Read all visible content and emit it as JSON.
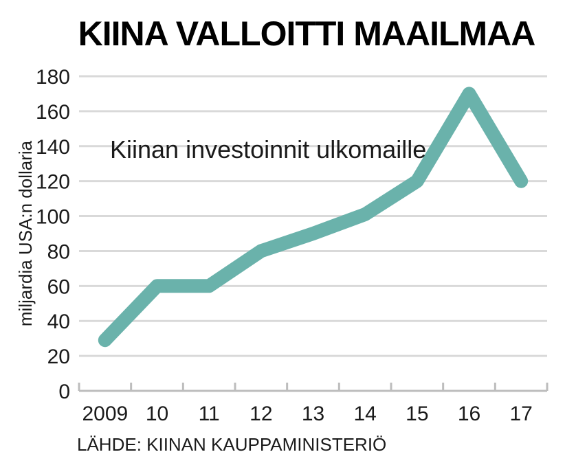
{
  "chart_data": {
    "type": "line",
    "title": "KIINA VALLOITTI MAAILMAA",
    "ylabel": "miljardia USA:n dollaria",
    "xlabel": "",
    "ylim": [
      0,
      180
    ],
    "y_ticks": [
      0,
      20,
      40,
      60,
      80,
      100,
      120,
      140,
      160,
      180
    ],
    "categories": [
      "2009",
      "10",
      "11",
      "12",
      "13",
      "14",
      "15",
      "16",
      "17"
    ],
    "series": [
      {
        "name": "Kiinan investoinnit ulkomaille",
        "values": [
          29,
          60,
          60,
          80,
          90,
          101,
          120,
          170,
          120
        ]
      }
    ],
    "annotation": "Kiinan investoinnit ulkomaille",
    "source": "LÄHDE: KIINAN KAUPPAMINISTERIÖ",
    "grid": true,
    "colors": {
      "line": "#6ab2ab",
      "grid": "#d9d9d9",
      "axis": "#bdbdbd",
      "text": "#1a1a1a"
    }
  }
}
